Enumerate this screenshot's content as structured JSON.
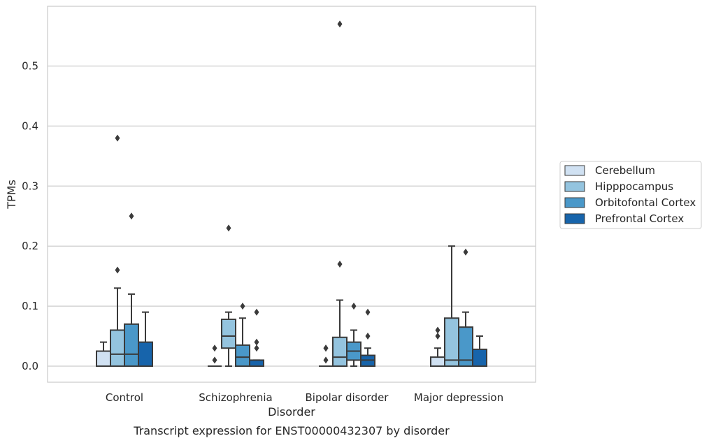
{
  "caption": "Transcript expression for ENST00000432307 by disorder",
  "chart_data": {
    "type": "boxplot",
    "title": "",
    "xlabel": "Disorder",
    "ylabel": "TPMs",
    "ylim": [
      -0.028,
      0.6
    ],
    "yticks": [
      0.0,
      0.1,
      0.2,
      0.3,
      0.4,
      0.5
    ],
    "ytick_labels": [
      "0.0",
      "0.1",
      "0.2",
      "0.3",
      "0.4",
      "0.5"
    ],
    "grid": "horizontal",
    "legend_position": "right",
    "categories": [
      "Control",
      "Schizophrenia",
      "Bipolar disorder",
      "Major depression"
    ],
    "series": [
      {
        "name": "Cerebellum",
        "color": "#d0e1f2",
        "boxes": [
          {
            "whislo": 0.0,
            "q1": 0.0,
            "med": 0.0,
            "q3": 0.025,
            "whishi": 0.04,
            "fliers": []
          },
          {
            "whislo": 0.0,
            "q1": 0.0,
            "med": 0.0,
            "q3": 0.0,
            "whishi": 0.0,
            "fliers": [
              0.01,
              0.03
            ]
          },
          {
            "whislo": 0.0,
            "q1": 0.0,
            "med": 0.0,
            "q3": 0.0,
            "whishi": 0.0,
            "fliers": [
              0.01,
              0.03,
              0.03
            ]
          },
          {
            "whislo": 0.0,
            "q1": 0.0,
            "med": 0.0,
            "q3": 0.015,
            "whishi": 0.03,
            "fliers": [
              0.05,
              0.06
            ]
          }
        ]
      },
      {
        "name": "Hipppocampus",
        "color": "#94c4df",
        "boxes": [
          {
            "whislo": 0.0,
            "q1": 0.0,
            "med": 0.02,
            "q3": 0.06,
            "whishi": 0.13,
            "fliers": [
              0.16,
              0.38
            ]
          },
          {
            "whislo": 0.0,
            "q1": 0.03,
            "med": 0.05,
            "q3": 0.078,
            "whishi": 0.09,
            "fliers": [
              0.23
            ]
          },
          {
            "whislo": 0.0,
            "q1": 0.0,
            "med": 0.015,
            "q3": 0.048,
            "whishi": 0.11,
            "fliers": [
              0.17,
              0.57
            ]
          },
          {
            "whislo": 0.0,
            "q1": 0.0,
            "med": 0.01,
            "q3": 0.08,
            "whishi": 0.2,
            "fliers": []
          }
        ]
      },
      {
        "name": "Orbitofontal Cortex",
        "color": "#4a98c9",
        "boxes": [
          {
            "whislo": 0.0,
            "q1": 0.0,
            "med": 0.02,
            "q3": 0.07,
            "whishi": 0.12,
            "fliers": [
              0.25
            ]
          },
          {
            "whislo": 0.0,
            "q1": 0.0,
            "med": 0.015,
            "q3": 0.035,
            "whishi": 0.08,
            "fliers": [
              0.1
            ]
          },
          {
            "whislo": 0.0,
            "q1": 0.01,
            "med": 0.025,
            "q3": 0.04,
            "whishi": 0.06,
            "fliers": [
              0.1
            ]
          },
          {
            "whislo": 0.0,
            "q1": 0.0,
            "med": 0.01,
            "q3": 0.065,
            "whishi": 0.09,
            "fliers": [
              0.19
            ]
          }
        ]
      },
      {
        "name": "Prefrontal Cortex",
        "color": "#1764ab",
        "boxes": [
          {
            "whislo": 0.0,
            "q1": 0.0,
            "med": 0.0,
            "q3": 0.04,
            "whishi": 0.09,
            "fliers": []
          },
          {
            "whislo": 0.0,
            "q1": 0.0,
            "med": 0.0,
            "q3": 0.01,
            "whishi": 0.01,
            "fliers": [
              0.03,
              0.04,
              0.09
            ]
          },
          {
            "whislo": 0.0,
            "q1": 0.0,
            "med": 0.01,
            "q3": 0.018,
            "whishi": 0.03,
            "fliers": [
              0.05,
              0.09
            ]
          },
          {
            "whislo": 0.0,
            "q1": 0.0,
            "med": 0.0,
            "q3": 0.028,
            "whishi": 0.05,
            "fliers": []
          }
        ]
      }
    ]
  }
}
